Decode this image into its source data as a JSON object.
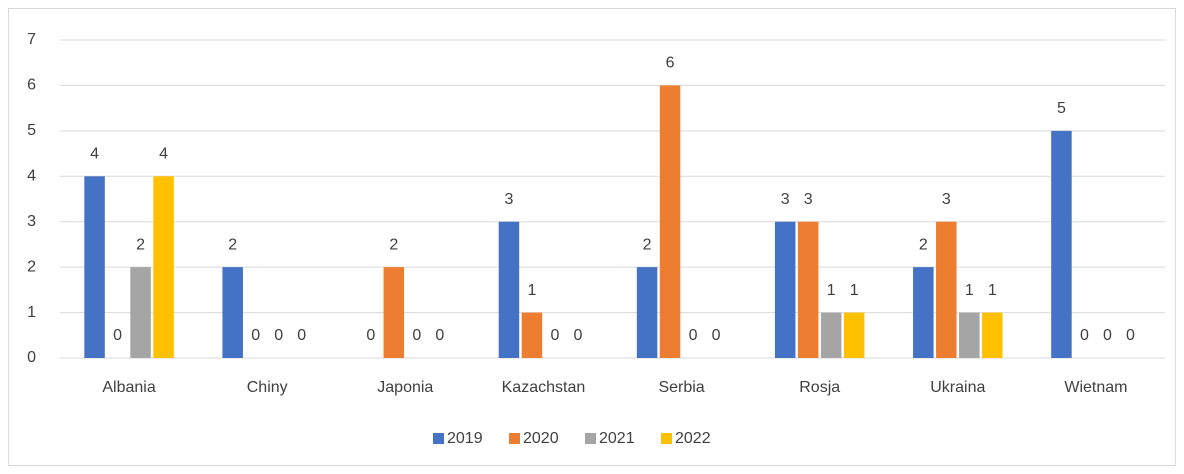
{
  "chart_data": {
    "type": "bar",
    "categories": [
      "Albania",
      "Chiny",
      "Japonia",
      "Kazachstan",
      "Serbia",
      "Rosja",
      "Ukraina",
      "Wietnam"
    ],
    "series": [
      {
        "name": "2019",
        "color": "#4472c4",
        "values": [
          4,
          2,
          0,
          3,
          2,
          3,
          2,
          5
        ]
      },
      {
        "name": "2020",
        "color": "#ed7d31",
        "values": [
          0,
          0,
          2,
          1,
          6,
          3,
          3,
          0
        ]
      },
      {
        "name": "2021",
        "color": "#a5a5a5",
        "values": [
          2,
          0,
          0,
          0,
          0,
          1,
          1,
          0
        ]
      },
      {
        "name": "2022",
        "color": "#ffc000",
        "values": [
          4,
          0,
          0,
          0,
          0,
          1,
          1,
          0
        ]
      }
    ],
    "ylim": [
      0,
      7
    ],
    "yticks": [
      0,
      1,
      2,
      3,
      4,
      5,
      6,
      7
    ],
    "grid": true,
    "legend": "bottom"
  }
}
